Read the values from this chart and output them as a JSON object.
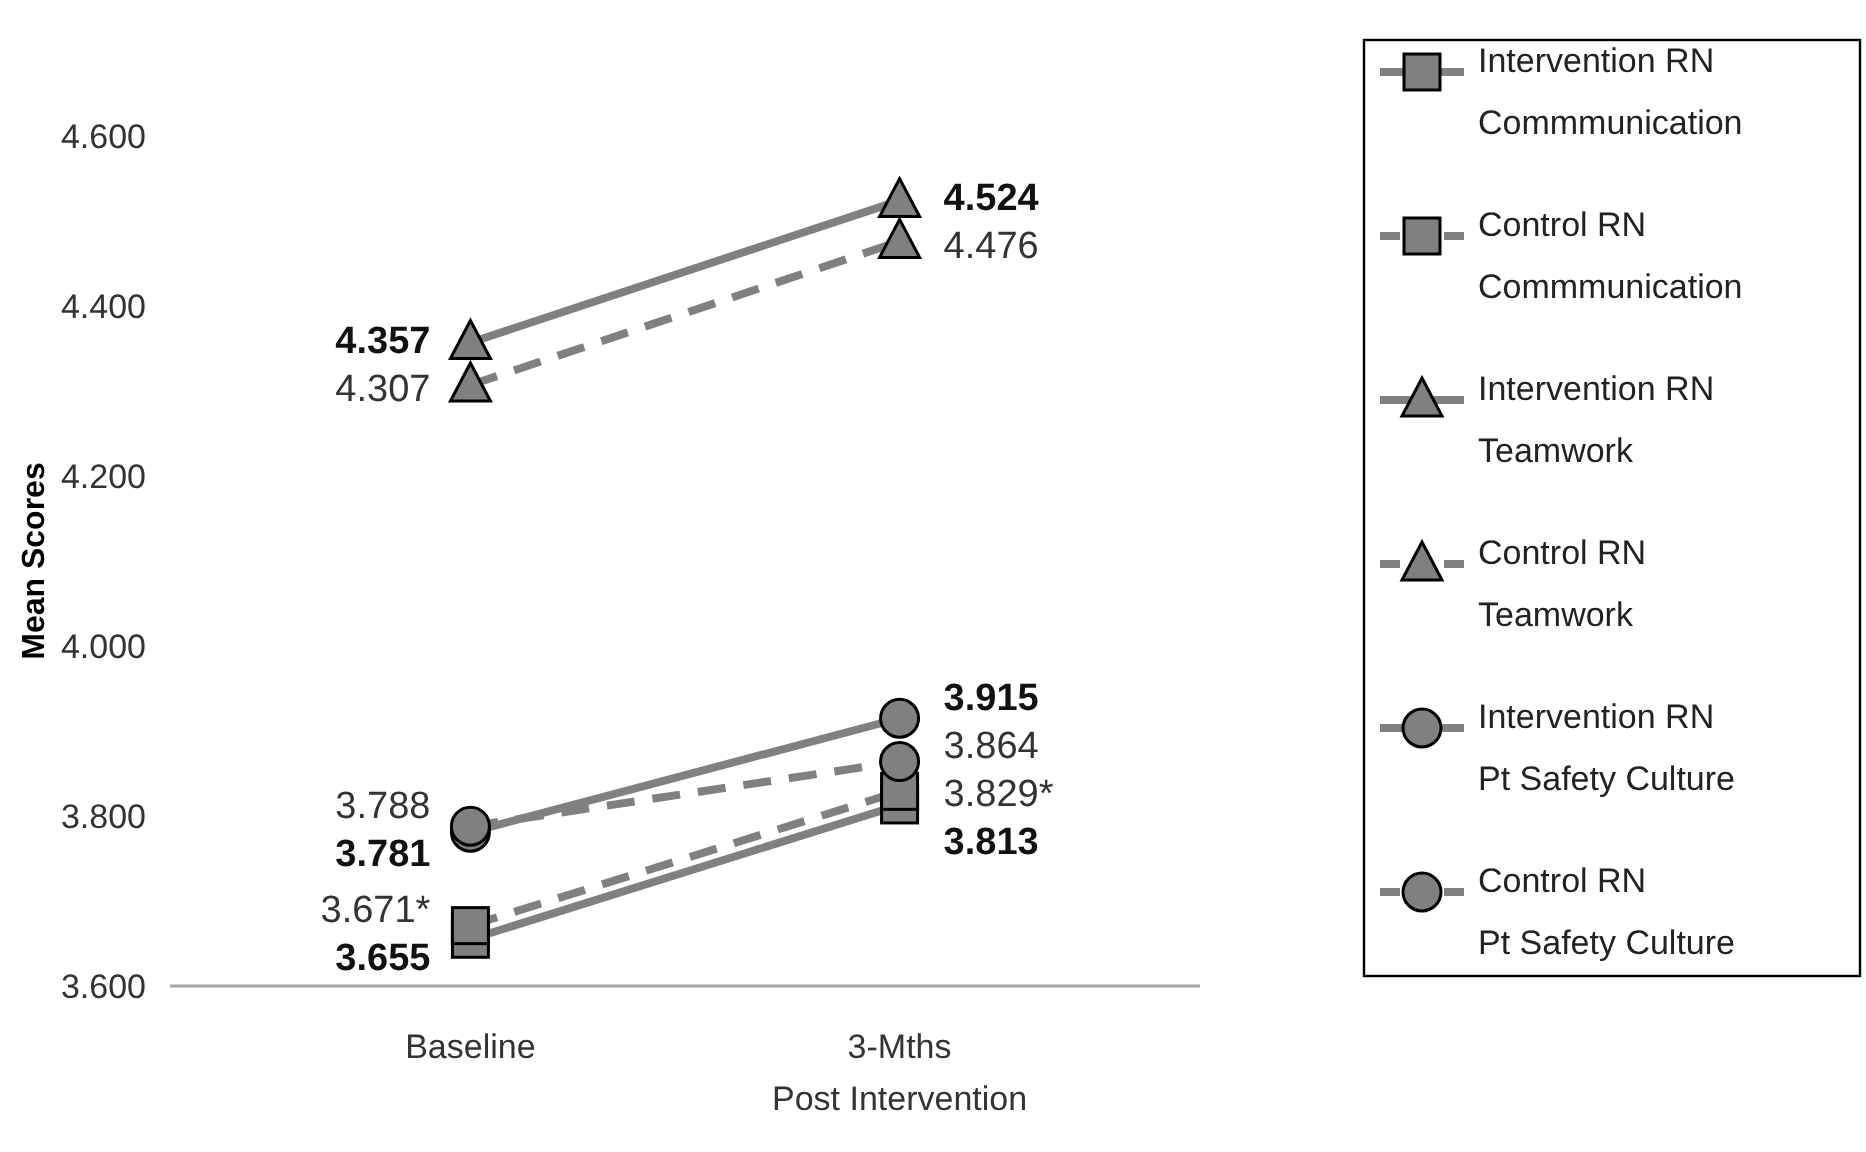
{
  "chart_data": {
    "type": "line",
    "ylabel": "Mean Scores",
    "categories": [
      "Baseline",
      "3-Mths\nPost Intervention"
    ],
    "ylim": [
      3.6,
      4.6
    ],
    "yticks": [
      {
        "value": 3.6,
        "label": "3.600"
      },
      {
        "value": 3.8,
        "label": "3.800"
      },
      {
        "value": 4.0,
        "label": "4.000"
      },
      {
        "value": 4.2,
        "label": "4.200"
      },
      {
        "value": 4.4,
        "label": "4.400"
      },
      {
        "value": 4.6,
        "label": "4.600"
      }
    ],
    "grid": false,
    "legend": "right",
    "series": [
      {
        "name": "Intervention RN\nCommmunication",
        "color": "#808080",
        "marker": "square",
        "line_style": "solid",
        "values": [
          3.655,
          3.813
        ],
        "value_labels": [
          "3.655",
          "3.813"
        ]
      },
      {
        "name": "Control RN\nCommmunication",
        "color": "#808080",
        "marker": "square",
        "line_style": "dashed",
        "values": [
          3.671,
          3.829
        ],
        "value_labels": [
          "3.671*",
          "3.829*"
        ]
      },
      {
        "name": "Intervention RN\nTeamwork",
        "color": "#808080",
        "marker": "triangle",
        "line_style": "solid",
        "values": [
          4.357,
          4.524
        ],
        "value_labels": [
          "4.357",
          "4.524"
        ]
      },
      {
        "name": "Control RN\nTeamwork",
        "color": "#808080",
        "marker": "triangle",
        "line_style": "dashed",
        "values": [
          4.307,
          4.476
        ],
        "value_labels": [
          "4.307",
          "4.476"
        ]
      },
      {
        "name": "Intervention RN\nPt Safety Culture",
        "color": "#808080",
        "marker": "circle",
        "line_style": "solid",
        "values": [
          3.781,
          3.915
        ],
        "value_labels": [
          "3.781",
          "3.915"
        ]
      },
      {
        "name": "Control RN\nPt Safety Culture",
        "color": "#808080",
        "marker": "circle",
        "line_style": "dashed",
        "values": [
          3.788,
          3.864
        ],
        "value_labels": [
          "3.788",
          "3.864"
        ]
      }
    ]
  }
}
